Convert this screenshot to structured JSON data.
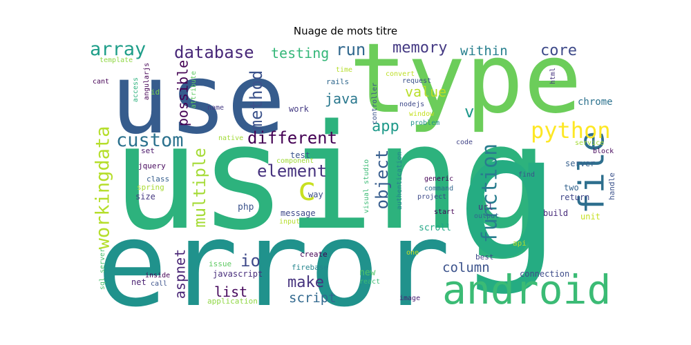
{
  "chart_data": {
    "type": "wordcloud",
    "title": "Nuage de mots titre",
    "words": [
      {
        "text": "using",
        "weight": 100,
        "orientation": "horizontal",
        "color": "#2db27d"
      },
      {
        "text": "error",
        "weight": 84,
        "orientation": "horizontal",
        "color": "#20928c"
      },
      {
        "text": "use",
        "weight": 66,
        "orientation": "horizontal",
        "color": "#365c8d"
      },
      {
        "text": "type",
        "weight": 64,
        "orientation": "horizontal",
        "color": "#6ccd5a"
      },
      {
        "text": "g",
        "weight": 58,
        "orientation": "horizontal",
        "color": "#25ac82"
      },
      {
        "text": "android",
        "weight": 24,
        "orientation": "horizontal",
        "color": "#3bbb75"
      },
      {
        "text": "file",
        "weight": 17,
        "orientation": "vertical",
        "color": "#2e6f8e"
      },
      {
        "text": "python",
        "weight": 13,
        "orientation": "horizontal",
        "color": "#fde725"
      },
      {
        "text": "c",
        "weight": 15,
        "orientation": "horizontal",
        "color": "#c8e020"
      },
      {
        "text": "function",
        "weight": 12,
        "orientation": "vertical",
        "color": "#287c8e"
      },
      {
        "text": "workingdata",
        "weight": 11,
        "orientation": "vertical",
        "color": "#b5de2b"
      },
      {
        "text": "custom",
        "weight": 11,
        "orientation": "horizontal",
        "color": "#2c728e"
      },
      {
        "text": "multiple",
        "weight": 10,
        "orientation": "vertical",
        "color": "#a5db36"
      },
      {
        "text": "method",
        "weight": 10,
        "orientation": "vertical",
        "color": "#3b528b"
      },
      {
        "text": "different",
        "weight": 10,
        "orientation": "horizontal",
        "color": "#440154"
      },
      {
        "text": "database",
        "weight": 10,
        "orientation": "horizontal",
        "color": "#482878"
      },
      {
        "text": "array",
        "weight": 11,
        "orientation": "horizontal",
        "color": "#1f9e89"
      },
      {
        "text": "element",
        "weight": 10,
        "orientation": "horizontal",
        "color": "#46327e"
      },
      {
        "text": "object",
        "weight": 10,
        "orientation": "vertical",
        "color": "#365c8d"
      },
      {
        "text": "core",
        "weight": 9,
        "orientation": "horizontal",
        "color": "#3e4a89"
      },
      {
        "text": "run",
        "weight": 9,
        "orientation": "horizontal",
        "color": "#31688e"
      },
      {
        "text": "memory",
        "weight": 9,
        "orientation": "horizontal",
        "color": "#443983"
      },
      {
        "text": "testing",
        "weight": 8,
        "orientation": "horizontal",
        "color": "#35b779"
      },
      {
        "text": "within",
        "weight": 8,
        "orientation": "horizontal",
        "color": "#277f8e"
      },
      {
        "text": "app",
        "weight": 9,
        "orientation": "horizontal",
        "color": "#1f9a8a"
      },
      {
        "text": "possible",
        "weight": 8,
        "orientation": "vertical",
        "color": "#440154"
      },
      {
        "text": "aspnet",
        "weight": 8,
        "orientation": "vertical",
        "color": "#482475"
      },
      {
        "text": "io",
        "weight": 9,
        "orientation": "horizontal",
        "color": "#3e4989"
      },
      {
        "text": "make",
        "weight": 9,
        "orientation": "horizontal",
        "color": "#46337e"
      },
      {
        "text": "java",
        "weight": 8,
        "orientation": "horizontal",
        "color": "#2a788e"
      },
      {
        "text": "value",
        "weight": 8,
        "orientation": "horizontal",
        "color": "#b8de29"
      },
      {
        "text": "v",
        "weight": 9,
        "orientation": "horizontal",
        "color": "#1f988b"
      },
      {
        "text": "list",
        "weight": 8,
        "orientation": "horizontal",
        "color": "#46085c"
      },
      {
        "text": "column",
        "weight": 7,
        "orientation": "horizontal",
        "color": "#3b528b"
      },
      {
        "text": "script",
        "weight": 8,
        "orientation": "horizontal",
        "color": "#31688e"
      },
      {
        "text": "chrome",
        "weight": 5,
        "orientation": "horizontal",
        "color": "#2c728e"
      },
      {
        "text": "server",
        "weight": 5,
        "orientation": "horizontal",
        "color": "#355f8d"
      },
      {
        "text": "javascript",
        "weight": 5,
        "orientation": "horizontal",
        "color": "#472d7b"
      },
      {
        "text": "php",
        "weight": 5,
        "orientation": "horizontal",
        "color": "#3b528b"
      },
      {
        "text": "message",
        "weight": 5,
        "orientation": "horizontal",
        "color": "#3f4889"
      },
      {
        "text": "scroll",
        "weight": 5,
        "orientation": "horizontal",
        "color": "#21a685"
      },
      {
        "text": "work",
        "weight": 5,
        "orientation": "horizontal",
        "color": "#443a83"
      },
      {
        "text": "connection",
        "weight": 4,
        "orientation": "horizontal",
        "color": "#3e4c8a"
      },
      {
        "text": "new",
        "weight": 5,
        "orientation": "horizontal",
        "color": "#52c569"
      },
      {
        "text": "create",
        "weight": 4,
        "orientation": "horizontal",
        "color": "#440154"
      },
      {
        "text": "url",
        "weight": 4,
        "orientation": "horizontal",
        "color": "#46327e"
      },
      {
        "text": "build",
        "weight": 4,
        "orientation": "horizontal",
        "color": "#472c7a"
      },
      {
        "text": "return",
        "weight": 4,
        "orientation": "horizontal",
        "color": "#404688"
      },
      {
        "text": "two",
        "weight": 4,
        "orientation": "horizontal",
        "color": "#33638d"
      },
      {
        "text": "unit",
        "weight": 4,
        "orientation": "horizontal",
        "color": "#c5e021"
      },
      {
        "text": "size",
        "weight": 4,
        "orientation": "horizontal",
        "color": "#453781"
      },
      {
        "text": "class",
        "weight": 4,
        "orientation": "horizontal",
        "color": "#355e8d"
      },
      {
        "text": "set",
        "weight": 4,
        "orientation": "horizontal",
        "color": "#481467"
      },
      {
        "text": "jquery",
        "weight": 4,
        "orientation": "horizontal",
        "color": "#46085c"
      },
      {
        "text": "spring",
        "weight": 4,
        "orientation": "horizontal",
        "color": "#a8db34"
      },
      {
        "text": "way",
        "weight": 4,
        "orientation": "horizontal",
        "color": "#3d4e8a"
      },
      {
        "text": "test",
        "weight": 4,
        "orientation": "horizontal",
        "color": "#3a548c"
      },
      {
        "text": "net",
        "weight": 4,
        "orientation": "horizontal",
        "color": "#481f70"
      },
      {
        "text": "best",
        "weight": 4,
        "orientation": "horizontal",
        "color": "#404688"
      },
      {
        "text": "api",
        "weight": 4,
        "orientation": "horizontal",
        "color": "#b2dd2d"
      },
      {
        "text": "handle",
        "weight": 4,
        "orientation": "vertical",
        "color": "#3b528b"
      },
      {
        "text": "output",
        "weight": 3,
        "orientation": "horizontal",
        "color": "#31688e"
      },
      {
        "text": "start",
        "weight": 3,
        "orientation": "horizontal",
        "color": "#440154"
      },
      {
        "text": "project",
        "weight": 3,
        "orientation": "horizontal",
        "color": "#3e4a89"
      },
      {
        "text": "command",
        "weight": 3,
        "orientation": "horizontal",
        "color": "#31688e"
      },
      {
        "text": "generic",
        "weight": 3,
        "orientation": "horizontal",
        "color": "#440154"
      },
      {
        "text": "find",
        "weight": 3,
        "orientation": "horizontal",
        "color": "#3b528b"
      },
      {
        "text": "image",
        "weight": 3,
        "orientation": "horizontal",
        "color": "#482173"
      },
      {
        "text": "firebase",
        "weight": 3,
        "orientation": "horizontal",
        "color": "#25858e"
      },
      {
        "text": "issue",
        "weight": 3,
        "orientation": "horizontal",
        "color": "#5ec962"
      },
      {
        "text": "application",
        "weight": 3,
        "orientation": "horizontal",
        "color": "#8fd744"
      },
      {
        "text": "react",
        "weight": 3,
        "orientation": "horizontal",
        "color": "#3dbc74"
      },
      {
        "text": "input",
        "weight": 3,
        "orientation": "horizontal",
        "color": "#b5de2b"
      },
      {
        "text": "one",
        "weight": 3,
        "orientation": "horizontal",
        "color": "#c2df23"
      },
      {
        "text": "call",
        "weight": 3,
        "orientation": "horizontal",
        "color": "#3b528b"
      },
      {
        "text": "inside",
        "weight": 3,
        "orientation": "horizontal",
        "color": "#440154"
      },
      {
        "text": "native",
        "weight": 3,
        "orientation": "horizontal",
        "color": "#a2da37"
      },
      {
        "text": "component",
        "weight": 3,
        "orientation": "horizontal",
        "color": "#a0da39"
      },
      {
        "text": "code",
        "weight": 3,
        "orientation": "horizontal",
        "color": "#414487"
      },
      {
        "text": "service",
        "weight": 3,
        "orientation": "horizontal",
        "color": "#a5db36"
      },
      {
        "text": "block",
        "weight": 3,
        "orientation": "horizontal",
        "color": "#46085c"
      },
      {
        "text": "problem",
        "weight": 3,
        "orientation": "horizontal",
        "color": "#21918c"
      },
      {
        "text": "window",
        "weight": 3,
        "orientation": "horizontal",
        "color": "#c5e021"
      },
      {
        "text": "nodejs",
        "weight": 3,
        "orientation": "horizontal",
        "color": "#3e4989"
      },
      {
        "text": "request",
        "weight": 3,
        "orientation": "horizontal",
        "color": "#3b528b"
      },
      {
        "text": "convert",
        "weight": 3,
        "orientation": "horizontal",
        "color": "#bddf26"
      },
      {
        "text": "rails",
        "weight": 3,
        "orientation": "horizontal",
        "color": "#31688e"
      },
      {
        "text": "time",
        "weight": 3,
        "orientation": "horizontal",
        "color": "#b5de2b"
      },
      {
        "text": "html",
        "weight": 3,
        "orientation": "vertical",
        "color": "#46327e"
      },
      {
        "text": "name",
        "weight": 3,
        "orientation": "horizontal",
        "color": "#443983"
      },
      {
        "text": "id",
        "weight": 3,
        "orientation": "horizontal",
        "color": "#7ad151"
      },
      {
        "text": "attribute",
        "weight": 3,
        "orientation": "vertical",
        "color": "#5ec962"
      },
      {
        "text": "angularjs",
        "weight": 3,
        "orientation": "vertical",
        "color": "#440154"
      },
      {
        "text": "access",
        "weight": 3,
        "orientation": "vertical",
        "color": "#2db27d"
      },
      {
        "text": "template",
        "weight": 3,
        "orientation": "horizontal",
        "color": "#8fd744"
      },
      {
        "text": "cant",
        "weight": 3,
        "orientation": "horizontal",
        "color": "#440154"
      },
      {
        "text": "controller",
        "weight": 3,
        "orientation": "vertical",
        "color": "#3b528b"
      },
      {
        "text": "visual studio",
        "weight": 3,
        "orientation": "vertical",
        "color": "#3cbb75"
      },
      {
        "text": "authentication",
        "weight": 3,
        "orientation": "vertical",
        "color": "#26828e"
      },
      {
        "text": "sql server",
        "weight": 3,
        "orientation": "vertical",
        "color": "#4ac16d"
      }
    ]
  }
}
